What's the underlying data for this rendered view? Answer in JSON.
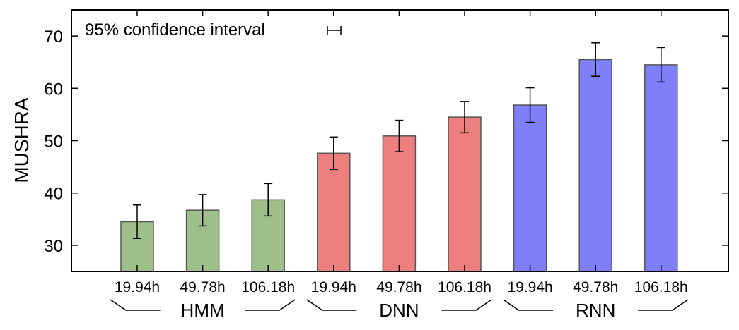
{
  "chart_data": {
    "type": "bar",
    "ylabel": "MUSHRA",
    "ylim": [
      25,
      75
    ],
    "yticks": [
      30,
      40,
      50,
      60,
      70
    ],
    "grid": false,
    "legend": {
      "text": "95% confidence interval",
      "placement": "top-left"
    },
    "groups": [
      {
        "name": "HMM",
        "color": "#9ebf8a",
        "categories": [
          "19.94h",
          "49.78h",
          "106.18h"
        ],
        "values": [
          34.5,
          36.7,
          38.7
        ],
        "error": [
          3.2,
          3.0,
          3.1
        ]
      },
      {
        "name": "DNN",
        "color": "#ee7f7f",
        "categories": [
          "19.94h",
          "49.78h",
          "106.18h"
        ],
        "values": [
          47.6,
          50.9,
          54.5
        ],
        "error": [
          3.1,
          3.0,
          3.0
        ]
      },
      {
        "name": "RNN",
        "color": "#7f7ffa",
        "categories": [
          "19.94h",
          "49.78h",
          "106.18h"
        ],
        "values": [
          56.8,
          65.5,
          64.5
        ],
        "error": [
          3.3,
          3.2,
          3.3
        ]
      }
    ]
  }
}
